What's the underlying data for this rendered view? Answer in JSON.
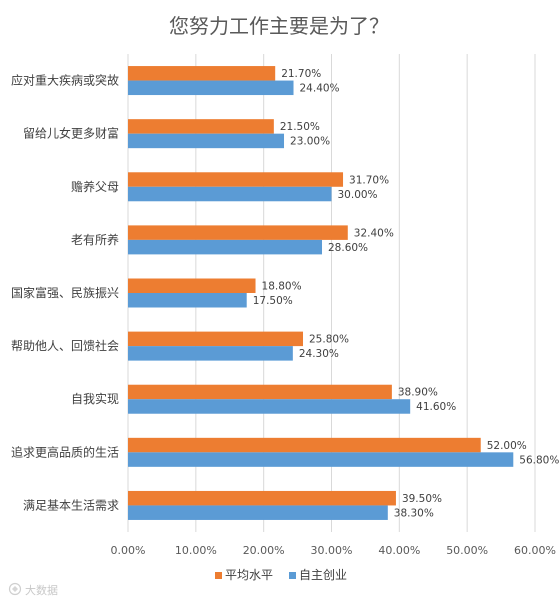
{
  "chart_data": {
    "type": "bar",
    "orientation": "horizontal",
    "title": "您努力工作主要是为了？",
    "categories": [
      "应对重大疾病或突故",
      "留给儿女更多财富",
      "赡养父母",
      "老有所养",
      "国家富强、民族振兴",
      "帮助他人、回馈社会",
      "自我实现",
      "追求更高品质的生活",
      "满足基本生活需求"
    ],
    "series": [
      {
        "name": "平均水平",
        "color": "#ED7D31",
        "values": [
          21.7,
          21.5,
          31.7,
          32.4,
          18.8,
          25.8,
          38.9,
          52.0,
          39.5
        ]
      },
      {
        "name": "自主创业",
        "color": "#5B9BD5",
        "values": [
          24.4,
          23.0,
          30.0,
          28.6,
          17.5,
          24.3,
          41.6,
          56.8,
          38.3
        ]
      }
    ],
    "xlim": [
      0,
      60
    ],
    "xticks": [
      0,
      10,
      20,
      30,
      40,
      50,
      60
    ],
    "tick_suffix": "%",
    "value_format": "percent-2dp",
    "grid": true,
    "legend_position": "bottom"
  },
  "watermark": {
    "text": "大数据",
    "icon": "watermark-logo-icon"
  }
}
